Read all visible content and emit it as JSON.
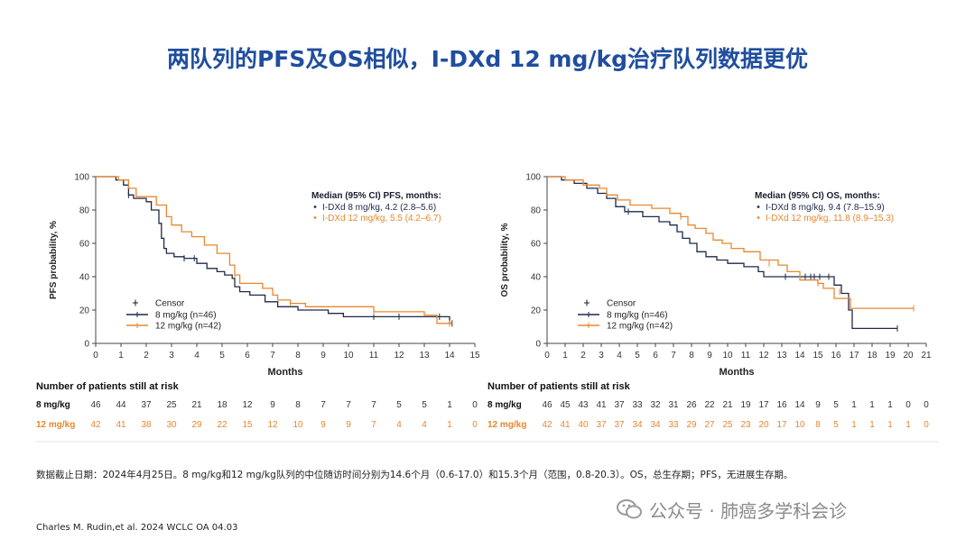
{
  "slide": {
    "title": "两队列的PFS及OS相似，I-DXd 12 mg/kg治疗队列数据更优",
    "footnote": "数据截止日期：2024年4月25日。8 mg/kg和12 mg/kg队列的中位随访时间分别为14.6个月（0.6-17.0）和15.3个月（范围，0.8-20.3）。OS，总生存期；PFS，无进展生存期。",
    "citation": "Charles M. Rudin,et al. 2024 WCLC OA 04.03",
    "watermark": "公众号 · 肺癌多学科会诊",
    "watermark_icon": "wechat-icon"
  },
  "colors": {
    "title": "#1f4e9e",
    "series_8": "#1f2a4a",
    "series_12": "#e8872f",
    "axis": "#444444"
  },
  "chart_data": [
    {
      "type": "line",
      "subtype": "kaplan-meier",
      "ylabel": "PFS probability, %",
      "xlabel": "Months",
      "xlim": [
        0,
        15
      ],
      "ylim": [
        0,
        100
      ],
      "xticks": [
        0,
        1,
        2,
        3,
        4,
        5,
        6,
        7,
        8,
        9,
        10,
        11,
        12,
        13,
        14,
        15
      ],
      "yticks": [
        0,
        20,
        40,
        60,
        80,
        100
      ],
      "median_header": "Median (95% CI) PFS, months:",
      "median_lines": [
        "I-DXd 8 mg/kg, 4.2 (2.8–5.6)",
        "I-DXd 12 mg/kg, 5.5 (4.2–6.7)"
      ],
      "legend": {
        "censor": "Censor",
        "position": "lower-left"
      },
      "series": [
        {
          "name": "8 mg/kg (n=46)",
          "x": [
            0,
            0.8,
            1.1,
            1.3,
            1.5,
            2.0,
            2.2,
            2.5,
            2.6,
            2.7,
            2.8,
            3.1,
            3.5,
            4.0,
            4.4,
            4.8,
            5.1,
            5.4,
            5.5,
            5.7,
            6.1,
            6.7,
            7.2,
            8.0,
            9.2,
            9.8,
            11.0,
            12.0,
            13.1,
            13.6,
            14.0,
            14.1
          ],
          "y": [
            100,
            98,
            95,
            89,
            87,
            85,
            80,
            72,
            63,
            57,
            54,
            52,
            51,
            48,
            45,
            43,
            41,
            39,
            34,
            31,
            29,
            25,
            22,
            20,
            18,
            16,
            16,
            16,
            16,
            16,
            12,
            12
          ],
          "censor_x": [
            1.3,
            3.5,
            3.9,
            11.0,
            12.0,
            13.6,
            14.0,
            14.1
          ],
          "censor_y": [
            89,
            51,
            51,
            16,
            16,
            16,
            12,
            12
          ]
        },
        {
          "name": "12 mg/kg (n=42)",
          "x": [
            0,
            0.9,
            1.3,
            1.6,
            2.4,
            2.8,
            3.0,
            3.4,
            3.8,
            4.3,
            4.8,
            5.3,
            5.5,
            5.7,
            6.6,
            7.0,
            7.2,
            7.7,
            8.3,
            11.0,
            13.0,
            13.5,
            14.0,
            14.1
          ],
          "y": [
            100,
            98,
            93,
            88,
            83,
            76,
            71,
            67,
            64,
            59,
            54,
            47,
            41,
            36,
            33,
            29,
            26,
            24,
            22,
            19,
            17,
            12,
            12,
            12
          ],
          "censor_x": [
            5.5,
            7.7,
            11.0,
            14.0
          ],
          "censor_y": [
            41,
            24,
            19,
            12
          ]
        }
      ],
      "risk_table": {
        "header": "Number of patients still at risk",
        "rows": [
          {
            "label": "8 mg/kg",
            "values": [
              "46",
              "44",
              "37",
              "25",
              "21",
              "18",
              "12",
              "9",
              "8",
              "7",
              "7",
              "7",
              "5",
              "5",
              "1",
              "0"
            ]
          },
          {
            "label": "12 mg/kg",
            "values": [
              "42",
              "41",
              "38",
              "30",
              "29",
              "22",
              "15",
              "12",
              "10",
              "9",
              "9",
              "7",
              "4",
              "4",
              "1",
              "0"
            ]
          }
        ]
      }
    },
    {
      "type": "line",
      "subtype": "kaplan-meier",
      "ylabel": "OS probability, %",
      "xlabel": "Months",
      "xlim": [
        0,
        21
      ],
      "ylim": [
        0,
        100
      ],
      "xticks": [
        0,
        1,
        2,
        3,
        4,
        5,
        6,
        7,
        8,
        9,
        10,
        11,
        12,
        13,
        14,
        15,
        16,
        17,
        18,
        19,
        20,
        21
      ],
      "yticks": [
        0,
        20,
        40,
        60,
        80,
        100
      ],
      "median_header": "Median (95% CI) OS, months:",
      "median_lines": [
        "I-DXd 8 mg/kg, 9.4 (7.8–15.9)",
        "I-DXd 12 mg/kg, 11.8 (8.9–15.3)"
      ],
      "legend": {
        "censor": "Censor",
        "position": "lower-left"
      },
      "series": [
        {
          "name": "8 mg/kg (n=46)",
          "x": [
            0,
            0.8,
            1.5,
            2.2,
            2.8,
            3.3,
            3.8,
            4.3,
            5.3,
            6.2,
            6.8,
            7.2,
            7.5,
            7.9,
            8.3,
            8.8,
            9.4,
            10.0,
            10.9,
            11.7,
            12.0,
            13.0,
            14.3,
            15.6,
            15.9,
            16.3,
            16.7,
            16.9,
            19.4
          ],
          "y": [
            100,
            98,
            96,
            93,
            90,
            87,
            82,
            79,
            76,
            73,
            71,
            67,
            63,
            60,
            55,
            52,
            50,
            48,
            46,
            43,
            40,
            40,
            40,
            40,
            35,
            30,
            20,
            9,
            9
          ],
          "censor_x": [
            4.5,
            13.2,
            14.3,
            14.6,
            14.8,
            15.1,
            15.6,
            19.4
          ],
          "censor_y": [
            79,
            40,
            40,
            40,
            40,
            40,
            40,
            9
          ],
          "note": "median 9.4"
        },
        {
          "name": "12 mg/kg (n=42)",
          "x": [
            0,
            1.0,
            2.0,
            2.9,
            3.3,
            3.9,
            4.6,
            5.8,
            6.8,
            7.4,
            7.8,
            8.2,
            8.8,
            9.2,
            9.7,
            10.2,
            10.9,
            11.8,
            12.8,
            13.3,
            14.0,
            15.0,
            15.3,
            15.9,
            16.8,
            17.0,
            20.3
          ],
          "y": [
            100,
            98,
            95,
            93,
            89,
            86,
            83,
            81,
            78,
            76,
            71,
            69,
            66,
            62,
            60,
            57,
            55,
            50,
            47,
            43,
            38,
            36,
            33,
            27,
            21,
            21,
            21
          ],
          "censor_x": [
            7.4,
            12.3,
            15.0,
            16.2,
            20.3
          ],
          "censor_y": [
            76,
            48,
            36,
            31,
            21
          ]
        }
      ],
      "risk_table": {
        "header": "Number of patients still at risk",
        "rows": [
          {
            "label": "8 mg/kg",
            "values": [
              "46",
              "45",
              "43",
              "41",
              "37",
              "33",
              "32",
              "31",
              "26",
              "22",
              "21",
              "19",
              "17",
              "16",
              "14",
              "9",
              "5",
              "1",
              "1",
              "1",
              "0",
              "0"
            ]
          },
          {
            "label": "12 mg/kg",
            "values": [
              "42",
              "41",
              "40",
              "37",
              "37",
              "34",
              "34",
              "33",
              "29",
              "27",
              "25",
              "23",
              "20",
              "17",
              "10",
              "8",
              "5",
              "1",
              "1",
              "1",
              "1",
              "0"
            ]
          }
        ]
      }
    }
  ]
}
